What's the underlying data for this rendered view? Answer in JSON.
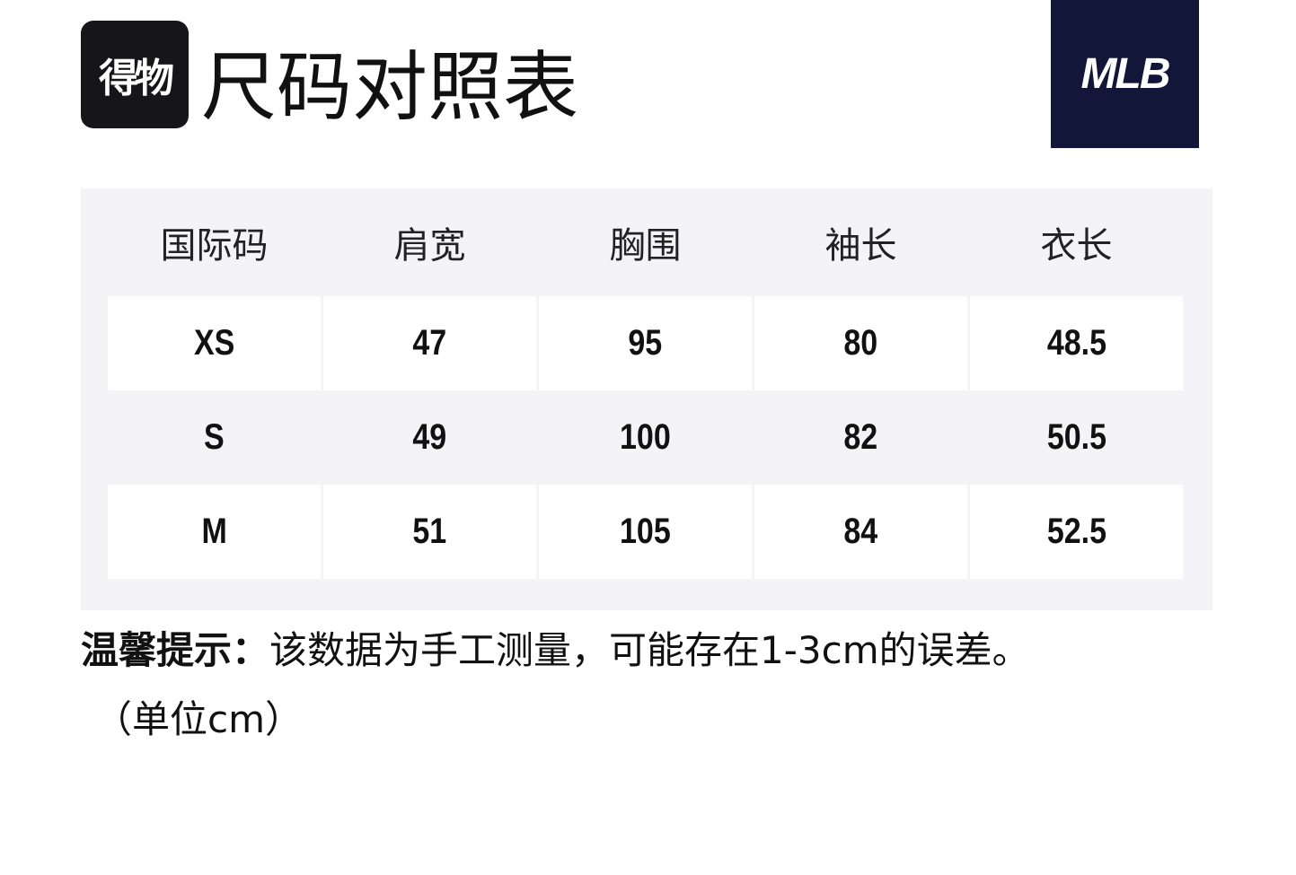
{
  "brand": {
    "badge": "得物",
    "logo": "MLB"
  },
  "title": "尺码对照表",
  "table": {
    "headers": [
      "国际码",
      "肩宽",
      "胸围",
      "袖长",
      "衣长"
    ],
    "rows": [
      [
        "XS",
        "47",
        "95",
        "80",
        "48.5"
      ],
      [
        "S",
        "49",
        "100",
        "82",
        "50.5"
      ],
      [
        "M",
        "51",
        "105",
        "84",
        "52.5"
      ]
    ]
  },
  "note": {
    "label": "温馨提示：",
    "text": "该数据为手工测量，可能存在1-3cm的误差。",
    "unit": "（单位cm）"
  },
  "colors": {
    "panel": "#f4f4f8",
    "logo_bg": "#121638"
  }
}
